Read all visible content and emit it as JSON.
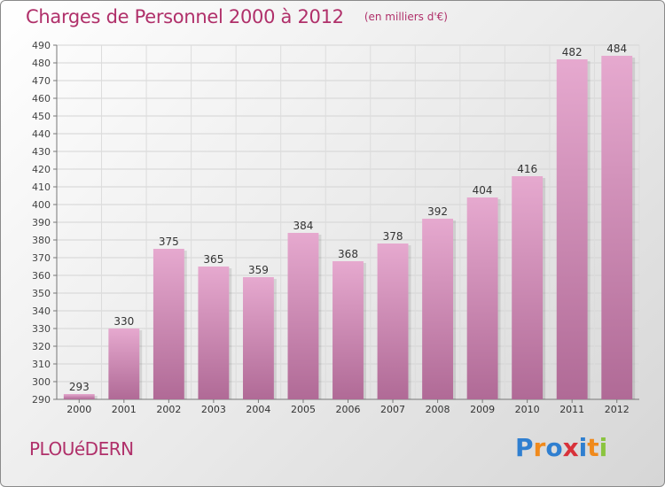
{
  "header": {
    "title": "Charges de Personnel 2000 à 2012",
    "subtitle": "(en milliers d'€)"
  },
  "footer": {
    "place": "PLOUéDERN",
    "logo_letters": [
      "P",
      "r",
      "o",
      "x",
      "i",
      "t",
      "i"
    ],
    "logo_colors": [
      "#2f7fd0",
      "#f08a1c",
      "#2f7fd0",
      "#d8323a",
      "#2f7fd0",
      "#f08a1c",
      "#8ac43f"
    ]
  },
  "colors": {
    "title": "#b0306a",
    "bar_top": "#e6a9cf",
    "bar_bottom": "#b06a96"
  },
  "chart_data": {
    "type": "bar",
    "categories": [
      "2000",
      "2001",
      "2002",
      "2003",
      "2004",
      "2005",
      "2006",
      "2007",
      "2008",
      "2009",
      "2010",
      "2011",
      "2012"
    ],
    "values": [
      293,
      330,
      375,
      365,
      359,
      384,
      368,
      378,
      392,
      404,
      416,
      482,
      484
    ],
    "ylim": [
      290,
      490
    ],
    "yticks": [
      290,
      300,
      310,
      320,
      330,
      340,
      350,
      360,
      370,
      380,
      390,
      400,
      410,
      420,
      430,
      440,
      450,
      460,
      470,
      480,
      490
    ],
    "grid": true,
    "title": "Charges de Personnel 2000 à 2012",
    "xlabel": "",
    "ylabel": ""
  }
}
